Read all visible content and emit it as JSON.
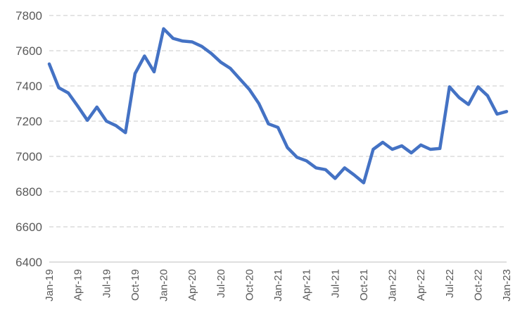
{
  "chart_data": {
    "type": "line",
    "title": "",
    "xlabel": "",
    "ylabel": "",
    "ylim": [
      6400,
      7800
    ],
    "yticks": [
      6400,
      6600,
      6800,
      7000,
      7200,
      7400,
      7600,
      7800
    ],
    "grid": true,
    "legend": "none",
    "x_tick_labels": [
      "Jan-19",
      "Apr-19",
      "Jul-19",
      "Oct-19",
      "Jan-20",
      "Apr-20",
      "Jul-20",
      "Oct-20",
      "Jan-21",
      "Apr-21",
      "Jul-21",
      "Oct-21",
      "Jan-22",
      "Apr-22",
      "Jul-22",
      "Oct-22",
      "Jan-23"
    ],
    "x_tick_every": 3,
    "x": [
      "Jan-19",
      "Feb-19",
      "Mar-19",
      "Apr-19",
      "May-19",
      "Jun-19",
      "Jul-19",
      "Aug-19",
      "Sep-19",
      "Oct-19",
      "Nov-19",
      "Dec-19",
      "Jan-20",
      "Feb-20",
      "Mar-20",
      "Apr-20",
      "May-20",
      "Jun-20",
      "Jul-20",
      "Aug-20",
      "Sep-20",
      "Oct-20",
      "Nov-20",
      "Dec-20",
      "Jan-21",
      "Feb-21",
      "Mar-21",
      "Apr-21",
      "May-21",
      "Jun-21",
      "Jul-21",
      "Aug-21",
      "Sep-21",
      "Oct-21",
      "Nov-21",
      "Dec-21",
      "Jan-22",
      "Feb-22",
      "Mar-22",
      "Apr-22",
      "May-22",
      "Jun-22",
      "Jul-22",
      "Aug-22",
      "Sep-22",
      "Oct-22",
      "Nov-22",
      "Dec-22",
      "Jan-23"
    ],
    "series": [
      {
        "color": "#4472c4",
        "values": [
          7525,
          7390,
          7360,
          7285,
          7205,
          7280,
          7200,
          7175,
          7135,
          7470,
          7570,
          7480,
          7725,
          7670,
          7655,
          7650,
          7625,
          7585,
          7535,
          7500,
          7440,
          7380,
          7300,
          7185,
          7165,
          7050,
          6995,
          6975,
          6935,
          6925,
          6875,
          6935,
          6895,
          6850,
          7040,
          7080,
          7040,
          7060,
          7020,
          7065,
          7040,
          7045,
          7395,
          7335,
          7295,
          7395,
          7345,
          7240,
          7255
        ]
      }
    ]
  }
}
